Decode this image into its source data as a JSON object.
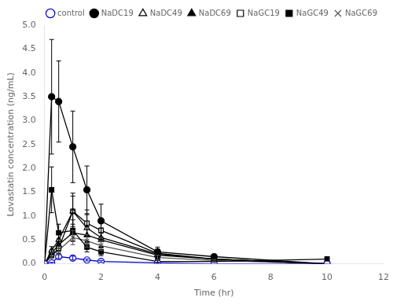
{
  "chart_data": {
    "type": "line",
    "x": [
      0,
      0.25,
      0.5,
      1,
      1.5,
      2,
      4,
      6,
      10
    ],
    "series": [
      {
        "name": "control",
        "color": "#0000cc",
        "marker": "open circle",
        "line_style": "solid",
        "values": [
          0,
          0.02,
          0.15,
          0.12,
          0.08,
          0.05,
          0.02,
          0.0,
          0.0
        ],
        "error": [
          0,
          0.01,
          0.04,
          0.04,
          0.02,
          0.02,
          0.01,
          0.0,
          0.0
        ]
      },
      {
        "name": "NaDC19",
        "color": "#000000",
        "marker": "filled circle",
        "line_style": "solid",
        "values": [
          0,
          3.5,
          3.4,
          2.45,
          1.55,
          0.9,
          0.25,
          0.15,
          0.0
        ],
        "error": [
          0,
          1.2,
          0.85,
          0.75,
          0.5,
          0.35,
          0.1,
          0.05,
          0.0
        ]
      },
      {
        "name": "NaDC49",
        "color": "#000000",
        "marker": "open triangle",
        "line_style": "solid",
        "values": [
          0,
          0.28,
          0.5,
          1.1,
          0.75,
          0.55,
          0.2,
          0.1,
          0.0
        ],
        "error": [
          0,
          0.08,
          0.18,
          0.32,
          0.28,
          0.2,
          0.08,
          0.04,
          0.0
        ]
      },
      {
        "name": "NaDC69",
        "color": "#000000",
        "marker": "filled triangle",
        "line_style": "solid",
        "values": [
          0,
          0.22,
          0.4,
          0.65,
          0.6,
          0.5,
          0.18,
          0.1,
          0.0
        ],
        "error": [
          0,
          0.07,
          0.12,
          0.18,
          0.18,
          0.14,
          0.06,
          0.03,
          0.0
        ]
      },
      {
        "name": "NaGC19",
        "color": "#000000",
        "marker": "open square",
        "line_style": "solid",
        "values": [
          0,
          0.18,
          0.32,
          1.1,
          0.85,
          0.7,
          0.22,
          0.1,
          0.0
        ],
        "error": [
          0,
          0.06,
          0.1,
          0.38,
          0.28,
          0.22,
          0.09,
          0.04,
          0.0
        ]
      },
      {
        "name": "NaGC49",
        "color": "#000000",
        "marker": "filled square",
        "line_style": "solid",
        "values": [
          0,
          1.55,
          0.65,
          0.7,
          0.35,
          0.25,
          0.05,
          0.05,
          0.1
        ],
        "error": [
          0,
          0.48,
          0.18,
          0.22,
          0.1,
          0.08,
          0.02,
          0.02,
          0.04
        ]
      },
      {
        "name": "NaGC69",
        "color": "#555555",
        "marker": "x",
        "line_style": "solid",
        "values": [
          0,
          0.18,
          0.28,
          0.55,
          0.48,
          0.38,
          0.13,
          0.07,
          0.0
        ],
        "error": [
          0,
          0.05,
          0.08,
          0.15,
          0.13,
          0.1,
          0.05,
          0.02,
          0.0
        ]
      }
    ],
    "xlabel": "Time (hr)",
    "ylabel": "Lovastatin concentration (ng/mL)",
    "xlim": [
      0,
      12
    ],
    "ylim": [
      0,
      5
    ],
    "xticks": [
      0,
      2,
      4,
      6,
      8,
      10,
      12
    ],
    "yticks": [
      {
        "value": 0,
        "label": "0.0"
      },
      0.5,
      {
        "value": 1.0,
        "label": "1.0"
      },
      1.5,
      {
        "value": 2.0,
        "label": "2.0"
      },
      2.5,
      {
        "value": 3.0,
        "label": "3.0"
      },
      3.5,
      {
        "value": 4.0,
        "label": "4.0"
      },
      4.5,
      {
        "value": 5.0,
        "label": "5.0"
      }
    ],
    "legend": "upper right",
    "grid": false
  }
}
